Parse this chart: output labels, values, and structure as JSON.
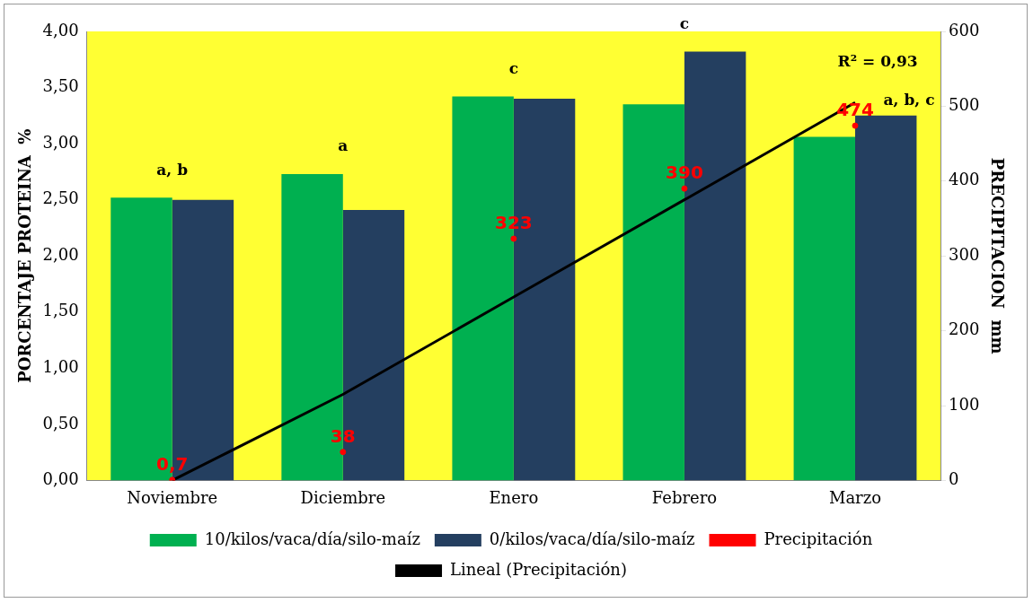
{
  "chart_data": {
    "type": "bar",
    "ylabel": "PORCENTAJE PROTEINA  %",
    "y2label": "PRECIPITACION  mm",
    "categories": [
      "Noviembre",
      "Diciembre",
      "Enero",
      "Febrero",
      "Marzo"
    ],
    "series": [
      {
        "name": "10/kilos/vaca/día/silo-maíz",
        "color": "#00b050",
        "values": [
          2.52,
          2.73,
          3.42,
          3.35,
          3.06
        ]
      },
      {
        "name": "0/kilos/vaca/día/silo-maíz",
        "color": "#243f60",
        "values": [
          2.5,
          2.41,
          3.4,
          3.82,
          3.25
        ]
      },
      {
        "name": "Precipitación",
        "type": "scatter",
        "marker": "circle",
        "axis": "y2",
        "color": "#ff0000",
        "values": [
          0.7,
          38,
          323,
          390,
          474
        ],
        "value_labels": [
          "0,7",
          "38",
          "323",
          "390",
          "474"
        ]
      },
      {
        "name": "Lineal (Precipitación)",
        "type": "line",
        "axis": "y2",
        "color": "#000000",
        "values": [
          0,
          115,
          245,
          375,
          505
        ]
      }
    ],
    "ylim": [
      0,
      4
    ],
    "yticks": [
      {
        "value": 0,
        "label": "0,00"
      },
      {
        "value": 0.5,
        "label": "0,50"
      },
      {
        "value": 1,
        "label": "1,00"
      },
      {
        "value": 1.5,
        "label": "1,50"
      },
      {
        "value": 2,
        "label": "2,00"
      },
      {
        "value": 2.5,
        "label": "2,50"
      },
      {
        "value": 3,
        "label": "3,00"
      },
      {
        "value": 3.5,
        "label": "3,50"
      },
      {
        "value": 4,
        "label": "4,00"
      }
    ],
    "y2lim": [
      0,
      600
    ],
    "y2ticks": [
      0,
      100,
      200,
      300,
      400,
      500,
      600
    ],
    "annotations": [
      "a, b",
      "a",
      "c",
      "c",
      "a, b, c",
      "R² = 0,93"
    ],
    "legend": "bottom",
    "grid": false
  }
}
